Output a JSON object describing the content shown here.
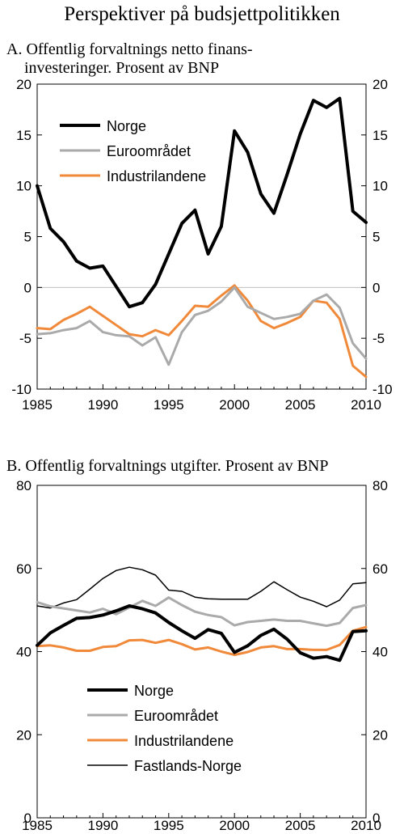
{
  "page": {
    "title": "Perspektiver på budsjettpolitikken"
  },
  "colors": {
    "norge": "#000000",
    "euro": "#aaaaaa",
    "industri": "#f08a3a",
    "fastland": "#000000",
    "zeroline": "#bfbfbf"
  },
  "chart_data": [
    {
      "id": "A",
      "type": "line",
      "title_line1": "A.  Offentlig forvaltnings netto finans-",
      "title_line2": "investeringer. Prosent av BNP",
      "ylim": [
        -10,
        20
      ],
      "yticks": [
        -10,
        -5,
        0,
        5,
        10,
        15,
        20
      ],
      "xlim": [
        1985,
        2010
      ],
      "xticks": [
        1985,
        1990,
        1995,
        2000,
        2005,
        2010
      ],
      "grid": false,
      "zero_line": true,
      "legend_position": "top-left",
      "x": [
        1985,
        1986,
        1987,
        1988,
        1989,
        1990,
        1991,
        1992,
        1993,
        1994,
        1995,
        1996,
        1997,
        1998,
        1999,
        2000,
        2001,
        2002,
        2003,
        2004,
        2005,
        2006,
        2007,
        2008,
        2009,
        2010
      ],
      "series": [
        {
          "name": "Norge",
          "color_key": "norge",
          "width": 4,
          "values": [
            10.0,
            5.8,
            4.5,
            2.6,
            1.9,
            2.1,
            0.1,
            -1.9,
            -1.5,
            0.3,
            3.3,
            6.3,
            7.6,
            3.3,
            6.0,
            15.4,
            13.3,
            9.2,
            7.3,
            11.1,
            15.1,
            18.4,
            17.7,
            18.6,
            7.5,
            6.4
          ]
        },
        {
          "name": "Euroområdet",
          "color_key": "euro",
          "width": 3,
          "values": [
            -4.6,
            -4.5,
            -4.2,
            -4.0,
            -3.3,
            -4.4,
            -4.7,
            -4.8,
            -5.7,
            -4.9,
            -7.6,
            -4.4,
            -2.7,
            -2.3,
            -1.4,
            0.0,
            -1.9,
            -2.5,
            -3.1,
            -2.9,
            -2.6,
            -1.3,
            -0.7,
            -2.0,
            -5.5,
            -7.0
          ]
        },
        {
          "name": "Industrilandene",
          "color_key": "industri",
          "width": 3,
          "values": [
            -4.0,
            -4.1,
            -3.2,
            -2.6,
            -1.9,
            -2.8,
            -3.7,
            -4.6,
            -4.8,
            -4.2,
            -4.7,
            -3.3,
            -1.8,
            -1.9,
            -0.8,
            0.2,
            -1.3,
            -3.3,
            -4.0,
            -3.5,
            -2.9,
            -1.3,
            -1.5,
            -3.1,
            -7.7,
            -8.8
          ]
        }
      ]
    },
    {
      "id": "B",
      "type": "line",
      "title": "B.  Offentlig forvaltnings utgifter. Prosent av BNP",
      "ylim": [
        0,
        80
      ],
      "yticks": [
        0,
        20,
        40,
        60,
        80
      ],
      "xlim": [
        1985,
        2010
      ],
      "xticks": [
        1985,
        1990,
        1995,
        2000,
        2005,
        2010
      ],
      "grid": false,
      "legend_position": "bottom-left",
      "x": [
        1985,
        1986,
        1987,
        1988,
        1989,
        1990,
        1991,
        1992,
        1993,
        1994,
        1995,
        1996,
        1997,
        1998,
        1999,
        2000,
        2001,
        2002,
        2003,
        2004,
        2005,
        2006,
        2007,
        2008,
        2009,
        2010
      ],
      "series": [
        {
          "name": "Norge",
          "color_key": "norge",
          "width": 4,
          "values": [
            41.5,
            44.5,
            46.3,
            48.0,
            48.2,
            48.8,
            49.8,
            51.0,
            50.3,
            49.3,
            47.0,
            45.0,
            43.2,
            45.3,
            44.4,
            39.8,
            41.4,
            43.9,
            45.4,
            43.0,
            39.7,
            38.4,
            38.8,
            37.9,
            44.8,
            45.0
          ]
        },
        {
          "name": "Euroområdet",
          "color_key": "euro",
          "width": 3,
          "values": [
            51.9,
            50.9,
            50.4,
            49.9,
            49.4,
            50.3,
            49.0,
            50.6,
            52.2,
            51.0,
            53.0,
            51.2,
            49.6,
            48.8,
            48.3,
            46.3,
            47.1,
            47.4,
            47.7,
            47.4,
            47.4,
            46.8,
            46.2,
            46.9,
            50.5,
            51.2
          ]
        },
        {
          "name": "Industrilandene",
          "color_key": "industri",
          "width": 3,
          "values": [
            41.3,
            41.5,
            41.0,
            40.2,
            40.2,
            41.1,
            41.3,
            42.7,
            42.8,
            42.1,
            42.8,
            41.8,
            40.5,
            41.0,
            40.0,
            39.2,
            39.9,
            41.0,
            41.3,
            40.6,
            40.6,
            40.4,
            40.4,
            41.6,
            45.0,
            45.9
          ]
        },
        {
          "name": "Fastlands-Norge",
          "color_key": "fastland",
          "width": 1.5,
          "values": [
            51.0,
            50.5,
            51.7,
            52.5,
            55.0,
            57.6,
            59.5,
            60.3,
            59.7,
            58.4,
            54.8,
            54.5,
            53.1,
            52.7,
            52.6,
            52.6,
            52.6,
            54.5,
            56.8,
            54.9,
            53.1,
            52.1,
            50.8,
            52.4,
            56.3,
            56.6
          ]
        }
      ]
    }
  ]
}
